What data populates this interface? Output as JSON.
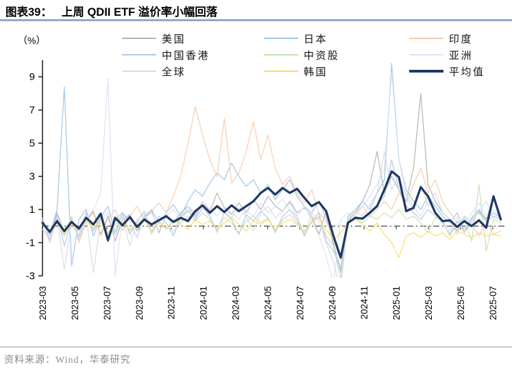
{
  "header": {
    "tag": "图表39：",
    "title": "上周 QDII ETF 溢价率小幅回落"
  },
  "footer": {
    "source": "资料来源：Wind，华泰研究"
  },
  "chart_data": {
    "type": "line",
    "title": "上周 QDII ETF 溢价率小幅回落",
    "ylabel": "（%）",
    "xlabel": "",
    "ylim": [
      -3,
      10
    ],
    "y_ticks": [
      9,
      7,
      5,
      3,
      1,
      -1,
      -3
    ],
    "x_tick_labels": [
      "2023-03",
      "2023-05",
      "2023-07",
      "2023-09",
      "2023-11",
      "2024-01",
      "2024-03",
      "2024-05",
      "2024-07",
      "2024-09",
      "2024-11",
      "2025-01",
      "2025-03",
      "2025-05",
      "2025-07"
    ],
    "x_months_span": 28.5,
    "grid": false,
    "zero_line_style": "dash-dot",
    "legend_position": "top",
    "series": [
      {
        "name": "美国",
        "color": "#b3b3b3",
        "emphasis": false,
        "values": [
          0.4,
          -0.6,
          0.8,
          -0.4,
          0.5,
          -0.8,
          0.3,
          0.9,
          -0.5,
          0.6,
          -0.9,
          0.4,
          0.7,
          -0.3,
          0.5,
          0.9,
          -0.4,
          0.6,
          0.2,
          0.8,
          1.2,
          0.6,
          1.5,
          0.9,
          2.0,
          1.1,
          0.7,
          1.4,
          0.8,
          1.6,
          1.0,
          1.8,
          1.2,
          0.9,
          1.5,
          0.8,
          1.1,
          0.6,
          -0.5,
          0.9,
          -1.2,
          -2.6,
          0.3,
          0.8,
          1.5,
          2.5,
          4.5,
          2.0,
          3.0,
          2.2,
          1.5,
          3.5,
          8.0,
          2.5,
          1.5,
          0.8,
          0.4,
          -0.3,
          0.6,
          0.2,
          0.9,
          0.4,
          1.8,
          0.6
        ]
      },
      {
        "name": "日本",
        "color": "#9dc3e6",
        "emphasis": false,
        "values": [
          0.3,
          -0.5,
          1.0,
          8.4,
          -2.4,
          0.4,
          1.0,
          -0.6,
          0.5,
          1.2,
          -0.4,
          0.8,
          0.3,
          -0.7,
          0.6,
          1.0,
          0.2,
          0.8,
          1.3,
          0.6,
          1.5,
          2.2,
          1.8,
          2.6,
          3.2,
          2.8,
          3.8,
          3.0,
          2.4,
          2.8,
          2.0,
          2.5,
          1.6,
          2.2,
          2.8,
          1.8,
          1.2,
          0.8,
          1.5,
          0.5,
          -1.0,
          -2.8,
          0.6,
          1.0,
          1.5,
          1.0,
          2.0,
          2.8,
          9.8,
          4.0,
          2.2,
          1.5,
          1.0,
          1.8,
          1.2,
          0.6,
          0.2,
          0.8,
          -0.4,
          0.5,
          1.0,
          0.4,
          0.8,
          0.5
        ]
      },
      {
        "name": "印度",
        "color": "#f8cbad",
        "emphasis": false,
        "values": [
          -0.2,
          -0.8,
          0.4,
          -0.5,
          0.6,
          -1.0,
          0.3,
          0.8,
          -0.6,
          0.4,
          1.0,
          -0.3,
          0.6,
          1.2,
          0.4,
          0.9,
          1.4,
          0.8,
          1.8,
          3.0,
          5.0,
          7.2,
          5.5,
          4.0,
          3.0,
          6.5,
          2.6,
          3.2,
          4.5,
          6.3,
          4.0,
          5.5,
          3.5,
          2.5,
          3.0,
          2.0,
          1.4,
          2.2,
          0.8,
          0.3,
          -0.8,
          -2.0,
          0.4,
          0.8,
          1.2,
          0.6,
          1.0,
          1.5,
          1.0,
          2.0,
          1.4,
          2.5,
          3.5,
          2.0,
          2.8,
          1.5,
          0.8,
          0.3,
          -0.4,
          0.2,
          -0.6,
          0.3,
          -0.5,
          -0.3
        ]
      },
      {
        "name": "中国香港",
        "color": "#b4c7e7",
        "emphasis": false,
        "values": [
          0.5,
          -0.9,
          0.7,
          -1.2,
          0.4,
          -0.6,
          0.8,
          -0.3,
          0.6,
          -1.0,
          0.4,
          0.8,
          -0.5,
          0.3,
          0.9,
          -0.4,
          0.6,
          0.2,
          -0.6,
          0.5,
          0.9,
          0.4,
          1.1,
          0.6,
          -0.3,
          0.8,
          0.4,
          -0.5,
          0.7,
          0.3,
          0.9,
          0.5,
          -0.4,
          0.6,
          1.0,
          0.4,
          -0.6,
          0.3,
          0.8,
          -0.9,
          -1.5,
          -2.6,
          0.2,
          0.6,
          0.4,
          0.9,
          1.3,
          1.8,
          4.0,
          2.2,
          1.2,
          0.8,
          0.4,
          1.0,
          0.6,
          0.2,
          -0.5,
          0.3,
          -0.2,
          0.4,
          0.8,
          0.3,
          0.6,
          0.4
        ]
      },
      {
        "name": "中资股",
        "color": "#c6e0b4",
        "emphasis": false,
        "values": [
          0.2,
          -0.4,
          0.3,
          -0.6,
          0.2,
          -0.3,
          0.5,
          -0.2,
          0.4,
          -0.5,
          0.3,
          0.6,
          -0.3,
          0.2,
          0.5,
          -0.4,
          0.3,
          -0.2,
          0.4,
          0.2,
          0.6,
          0.3,
          0.8,
          0.4,
          -0.2,
          0.5,
          0.2,
          -0.4,
          0.3,
          0.6,
          0.2,
          0.5,
          -0.3,
          0.4,
          0.7,
          0.2,
          -0.4,
          0.3,
          0.6,
          -0.6,
          -1.2,
          -3.2,
          0.3,
          0.5,
          0.2,
          0.6,
          0.4,
          0.8,
          0.5,
          1.0,
          0.4,
          0.6,
          0.2,
          -0.4,
          0.5,
          0.3,
          -0.6,
          0.2,
          0.5,
          -0.9,
          2.5,
          -1.5,
          0.4,
          0.2
        ]
      },
      {
        "name": "亚洲",
        "color": "#d9e2f3",
        "emphasis": false,
        "values": [
          0.3,
          -0.6,
          0.5,
          -0.4,
          0.6,
          -0.8,
          0.4,
          1.0,
          2.0,
          8.9,
          -3.0,
          0.6,
          0.3,
          -0.7,
          0.5,
          0.8,
          -0.3,
          0.6,
          1.0,
          0.4,
          1.2,
          0.8,
          1.5,
          1.0,
          0.6,
          1.2,
          0.8,
          0.4,
          1.0,
          0.6,
          1.4,
          0.8,
          1.2,
          1.6,
          1.0,
          0.6,
          1.2,
          0.4,
          -0.6,
          -1.8,
          -3.5,
          0.4,
          0.8,
          0.6,
          1.2,
          1.8,
          2.5,
          3.5,
          9.3,
          4.0,
          2.0,
          1.2,
          0.6,
          1.5,
          0.8,
          0.4,
          -0.3,
          0.5,
          0.2,
          0.8,
          1.4,
          0.6,
          1.0,
          0.5
        ]
      },
      {
        "name": "全球",
        "color": "#d6dce5",
        "emphasis": false,
        "values": [
          0.2,
          -1.0,
          0.5,
          -2.6,
          0.3,
          -0.8,
          0.6,
          -2.8,
          0.4,
          0.8,
          -0.6,
          0.5,
          -1.2,
          0.4,
          0.7,
          -0.5,
          0.3,
          0.8,
          -0.4,
          0.6,
          1.0,
          0.5,
          1.3,
          0.7,
          -0.4,
          0.9,
          0.5,
          1.1,
          0.6,
          -0.3,
          0.8,
          1.2,
          0.5,
          0.9,
          1.4,
          0.6,
          -0.5,
          0.8,
          0.3,
          -1.0,
          -2.2,
          -3.8,
          0.5,
          0.9,
          0.6,
          1.3,
          2.0,
          4.5,
          2.2,
          3.0,
          1.8,
          1.0,
          2.5,
          1.2,
          2.0,
          0.8,
          0.4,
          -0.5,
          0.6,
          0.2,
          0.9,
          1.5,
          0.5,
          0.8
        ]
      },
      {
        "name": "韩国",
        "color": "#ffd966",
        "emphasis": false,
        "values": [
          0.1,
          -0.3,
          0.2,
          -0.4,
          0.1,
          -0.2,
          0.3,
          -0.1,
          0.2,
          -0.4,
          0.1,
          0.3,
          -0.2,
          0.1,
          0.4,
          -0.3,
          0.2,
          -0.1,
          0.3,
          0.1,
          -0.2,
          0.4,
          0.1,
          0.3,
          -0.2,
          0.2,
          0.5,
          0.1,
          -0.3,
          0.3,
          0.1,
          0.4,
          -0.2,
          0.2,
          0.4,
          0.1,
          -0.3,
          0.2,
          0.5,
          -0.2,
          -0.8,
          -0.4,
          0.2,
          0.4,
          0.1,
          -0.3,
          0.2,
          -0.5,
          -1.0,
          -1.9,
          -0.6,
          -0.4,
          -0.7,
          -0.3,
          -0.6,
          -0.4,
          -0.8,
          -0.3,
          -0.5,
          -0.7,
          -0.4,
          -0.6,
          -0.5,
          -0.6
        ]
      },
      {
        "name": "平均值",
        "color": "#1f3864",
        "emphasis": true,
        "values": [
          0.2,
          -0.35,
          0.3,
          -0.3,
          0.25,
          -0.15,
          0.5,
          0.1,
          0.75,
          -0.85,
          0.5,
          0.05,
          0.55,
          -0.05,
          0.4,
          0.1,
          0.35,
          0.6,
          0.25,
          0.5,
          0.3,
          0.9,
          1.25,
          0.8,
          1.2,
          0.85,
          1.25,
          0.9,
          1.2,
          1.5,
          2.0,
          2.3,
          1.9,
          2.3,
          2.0,
          2.25,
          1.7,
          1.2,
          1.45,
          0.9,
          -0.6,
          -1.9,
          0.2,
          0.5,
          0.45,
          0.8,
          1.2,
          2.2,
          3.3,
          2.95,
          0.9,
          1.1,
          2.35,
          1.8,
          0.8,
          0.3,
          0.35,
          -0.05,
          0.3,
          0.0,
          0.35,
          -0.1,
          1.8,
          0.4
        ]
      }
    ]
  }
}
